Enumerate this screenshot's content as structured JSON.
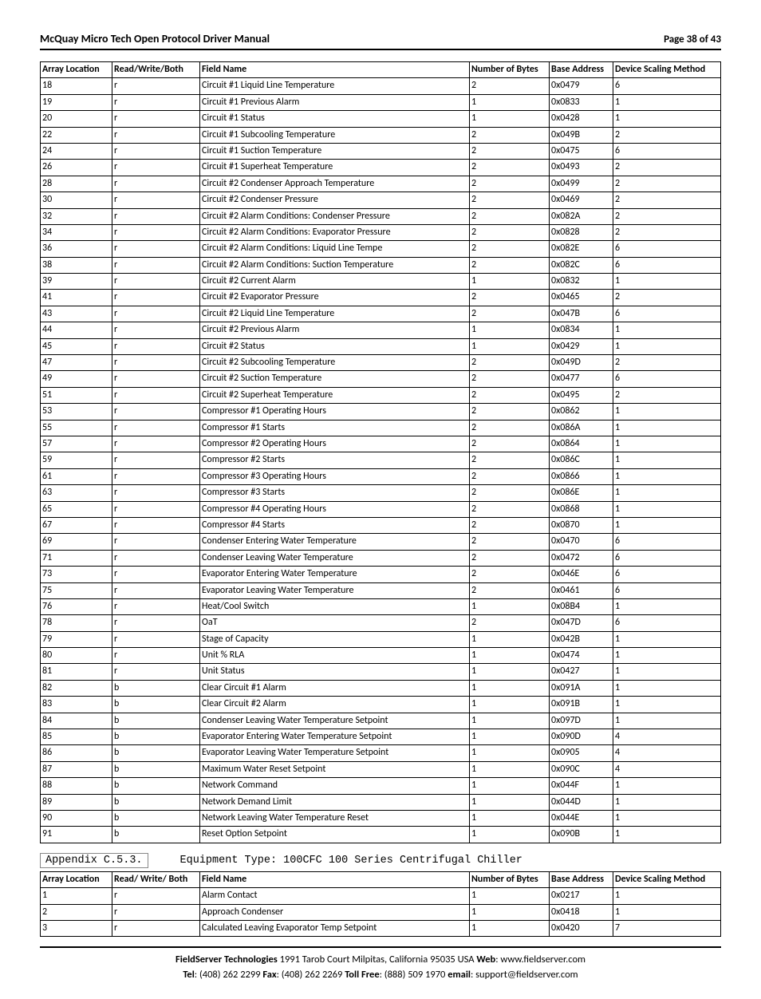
{
  "header": {
    "title": "McQuay Micro Tech Open Protocol Driver Manual",
    "page": "Page 38 of 43"
  },
  "table1": {
    "columns": [
      "Array Location",
      "Read/Write/Both",
      "Field Name",
      "Number of Bytes",
      "Base Address",
      "Device Scaling Method"
    ],
    "rows": [
      [
        "18",
        "r",
        "Circuit #1 Liquid Line Temperature",
        "2",
        "0x0479",
        "6"
      ],
      [
        "19",
        "r",
        "Circuit #1 Previous Alarm",
        "1",
        "0x0833",
        "1"
      ],
      [
        "20",
        "r",
        "Circuit #1 Status",
        "1",
        "0x0428",
        "1"
      ],
      [
        "22",
        "r",
        "Circuit #1 Subcooling Temperature",
        "2",
        "0x049B",
        "2"
      ],
      [
        "24",
        "r",
        "Circuit #1 Suction Temperature",
        "2",
        "0x0475",
        "6"
      ],
      [
        "26",
        "r",
        "Circuit #1 Superheat Temperature",
        "2",
        "0x0493",
        "2"
      ],
      [
        "28",
        "r",
        "Circuit #2 Condenser Approach Temperature",
        "2",
        "0x0499",
        "2"
      ],
      [
        "30",
        "r",
        "Circuit #2 Condenser Pressure",
        "2",
        "0x0469",
        "2"
      ],
      [
        "32",
        "r",
        "Circuit #2 Alarm Conditions: Condenser Pressure",
        "2",
        "0x082A",
        "2"
      ],
      [
        "34",
        "r",
        "Circuit #2 Alarm Conditions: Evaporator Pressure",
        "2",
        "0x0828",
        "2"
      ],
      [
        "36",
        "r",
        "Circuit #2 Alarm Conditions: Liquid Line Tempe",
        "2",
        "0x082E",
        "6"
      ],
      [
        "38",
        "r",
        "Circuit #2 Alarm Conditions: Suction Temperature",
        "2",
        "0x082C",
        "6"
      ],
      [
        "39",
        "r",
        "Circuit #2 Current Alarm",
        "1",
        "0x0832",
        "1"
      ],
      [
        "41",
        "r",
        "Circuit #2 Evaporator Pressure",
        "2",
        "0x0465",
        "2"
      ],
      [
        "43",
        "r",
        "Circuit #2 Liquid Line Temperature",
        "2",
        "0x047B",
        "6"
      ],
      [
        "44",
        "r",
        "Circuit #2 Previous Alarm",
        "1",
        "0x0834",
        "1"
      ],
      [
        "45",
        "r",
        "Circuit #2 Status",
        "1",
        "0x0429",
        "1"
      ],
      [
        "47",
        "r",
        "Circuit #2 Subcooling Temperature",
        "2",
        "0x049D",
        "2"
      ],
      [
        "49",
        "r",
        "Circuit #2 Suction Temperature",
        "2",
        "0x0477",
        "6"
      ],
      [
        "51",
        "r",
        "Circuit #2 Superheat Temperature",
        "2",
        "0x0495",
        "2"
      ],
      [
        "53",
        "r",
        "Compressor #1 Operating Hours",
        "2",
        "0x0862",
        "1"
      ],
      [
        "55",
        "r",
        "Compressor #1 Starts",
        "2",
        "0x086A",
        "1"
      ],
      [
        "57",
        "r",
        "Compressor #2 Operating Hours",
        "2",
        "0x0864",
        "1"
      ],
      [
        "59",
        "r",
        "Compressor #2 Starts",
        "2",
        "0x086C",
        "1"
      ],
      [
        "61",
        "r",
        "Compressor #3 Operating Hours",
        "2",
        "0x0866",
        "1"
      ],
      [
        "63",
        "r",
        "Compressor #3 Starts",
        "2",
        "0x086E",
        "1"
      ],
      [
        "65",
        "r",
        "Compressor #4 Operating Hours",
        "2",
        "0x0868",
        "1"
      ],
      [
        "67",
        "r",
        "Compressor #4 Starts",
        "2",
        "0x0870",
        "1"
      ],
      [
        "69",
        "r",
        "Condenser Entering Water Temperature",
        "2",
        "0x0470",
        "6"
      ],
      [
        "71",
        "r",
        "Condenser Leaving Water Temperature",
        "2",
        "0x0472",
        "6"
      ],
      [
        "73",
        "r",
        "Evaporator Entering Water Temperature",
        "2",
        "0x046E",
        "6"
      ],
      [
        "75",
        "r",
        "Evaporator Leaving Water Temperature",
        "2",
        "0x0461",
        "6"
      ],
      [
        "76",
        "r",
        "Heat/Cool Switch",
        "1",
        "0x08B4",
        "1"
      ],
      [
        "78",
        "r",
        "OaT",
        "2",
        "0x047D",
        "6"
      ],
      [
        "79",
        "r",
        "Stage of Capacity",
        "1",
        "0x042B",
        "1"
      ],
      [
        "80",
        "r",
        "Unit % RLA",
        "1",
        "0x0474",
        "1"
      ],
      [
        "81",
        "r",
        "Unit Status",
        "1",
        "0x0427",
        "1"
      ],
      [
        "82",
        "b",
        "Clear Circuit #1 Alarm",
        "1",
        "0x091A",
        "1"
      ],
      [
        "83",
        "b",
        "Clear Circuit #2 Alarm",
        "1",
        "0x091B",
        "1"
      ],
      [
        "84",
        "b",
        "Condenser Leaving Water Temperature Setpoint",
        "1",
        "0x097D",
        "1"
      ],
      [
        "85",
        "b",
        "Evaporator Entering Water Temperature Setpoint",
        "1",
        "0x090D",
        "4"
      ],
      [
        "86",
        "b",
        "Evaporator Leaving Water Temperature Setpoint",
        "1",
        "0x0905",
        "4"
      ],
      [
        "87",
        "b",
        "Maximum Water Reset Setpoint",
        "1",
        "0x090C",
        "4"
      ],
      [
        "88",
        "b",
        "Network Command",
        "1",
        "0x044F",
        "1"
      ],
      [
        "89",
        "b",
        "Network Demand Limit",
        "1",
        "0x044D",
        "1"
      ],
      [
        "90",
        "b",
        "Network Leaving Water Temperature Reset",
        "1",
        "0x044E",
        "1"
      ],
      [
        "91",
        "b",
        "Reset Option Setpoint",
        "1",
        "0x090B",
        "1"
      ]
    ]
  },
  "appendix": {
    "label": "Appendix C.5.3.",
    "title": "Equipment Type: 100CFC 100 Series Centrifugal Chiller"
  },
  "table2": {
    "columns": [
      "Array Location",
      "Read/ Write/ Both",
      "Field Name",
      "Number of Bytes",
      "Base Address",
      "Device Scaling Method"
    ],
    "rows": [
      [
        "1",
        "r",
        "Alarm Contact",
        "1",
        "0x0217",
        "1"
      ],
      [
        "2",
        "r",
        "Approach Condenser",
        "1",
        "0x0418",
        "1"
      ],
      [
        "3",
        "r",
        "Calculated Leaving Evaporator Temp Setpoint",
        "1",
        "0x0420",
        "7"
      ]
    ]
  },
  "footer": {
    "line1_bold1": "FieldServer Technologies",
    "line1_plain1": " 1991 Tarob Court Milpitas, California 95035 USA   ",
    "line1_bold2": "Web",
    "line1_plain2": ": www.fieldserver.com",
    "line2_bold1": "Tel",
    "line2_plain1": ": (408) 262 2299   ",
    "line2_bold2": "Fax",
    "line2_plain2": ": (408) 262 2269   ",
    "line2_bold3": "Toll Free",
    "line2_plain3": ": (888) 509 1970   ",
    "line2_bold4": "email",
    "line2_plain4": ": support@fieldserver.com"
  }
}
